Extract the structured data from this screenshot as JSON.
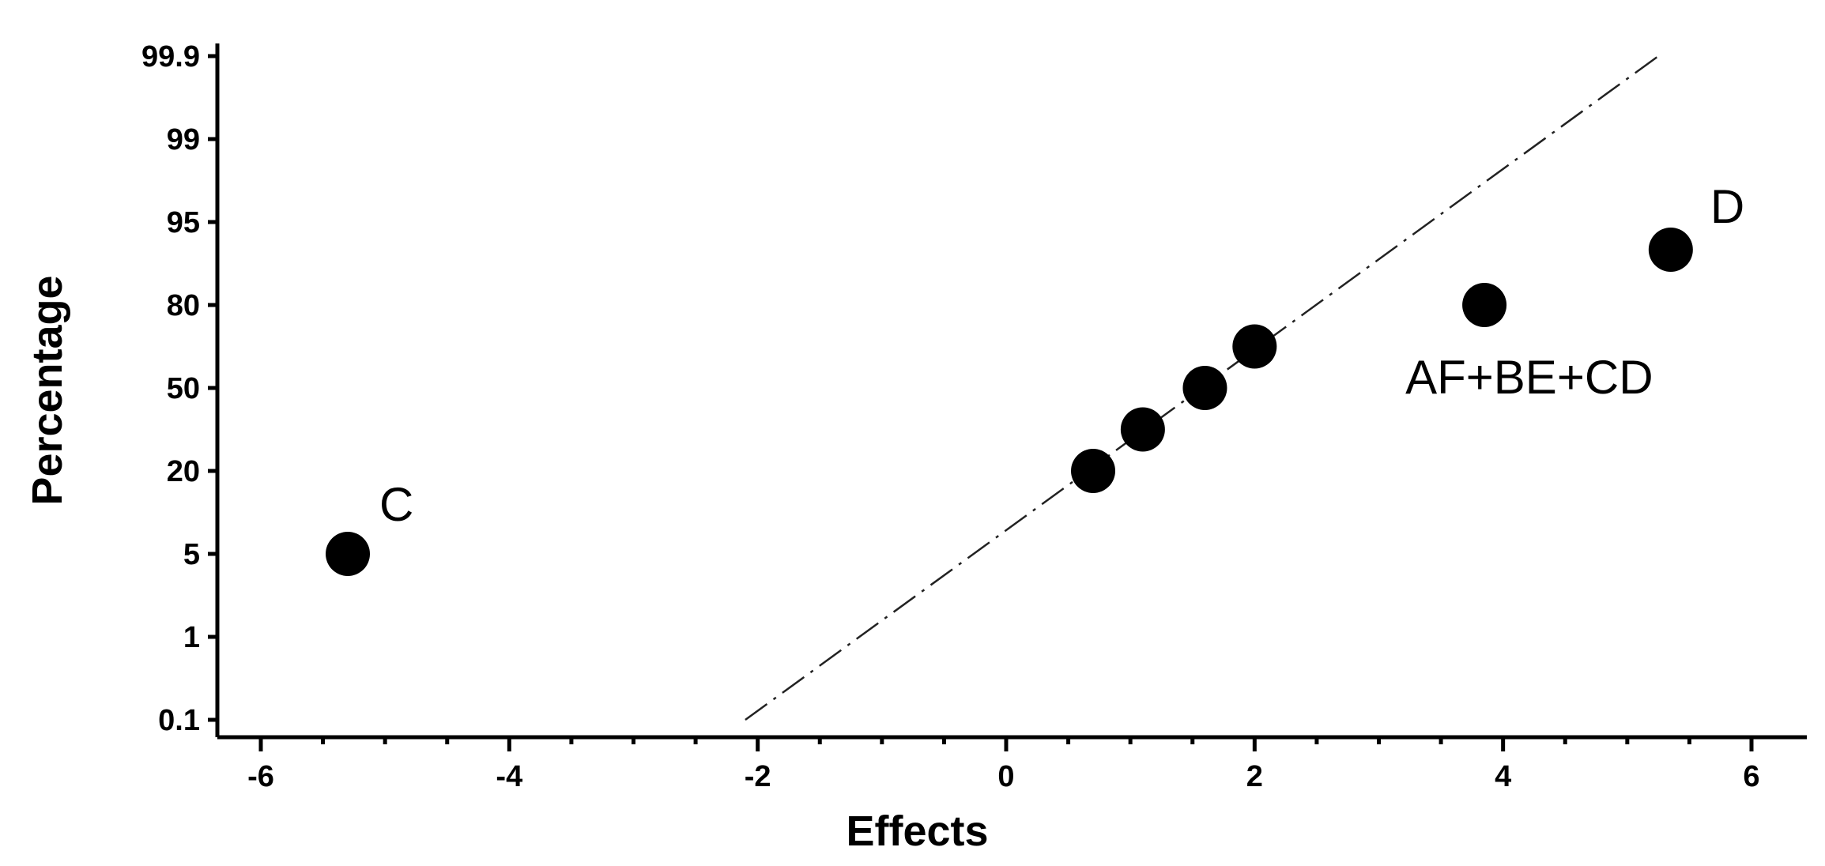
{
  "chart_data": {
    "type": "scatter",
    "title": "",
    "xlabel": "Effects",
    "ylabel": "Percentage",
    "xlim": [
      -6.2,
      6.5
    ],
    "x_ticks": [
      -6,
      -4,
      -2,
      0,
      2,
      4,
      6
    ],
    "x_minor_step": 0.5,
    "y_ticks": [
      "0.1",
      "1",
      "5",
      "20",
      "50",
      "80",
      "95",
      "99",
      "99.9"
    ],
    "y_scale": "normal-probability",
    "grid": false,
    "marker_color": "#000000",
    "points": [
      {
        "x": -5.3,
        "y": "5",
        "label": "C"
      },
      {
        "x": 0.7,
        "y": "20",
        "label": ""
      },
      {
        "x": 1.1,
        "y": "35",
        "label": ""
      },
      {
        "x": 1.6,
        "y": "50",
        "label": ""
      },
      {
        "x": 2.0,
        "y": "65",
        "label": ""
      },
      {
        "x": 3.85,
        "y": "80",
        "label": "AF+BE+CD"
      },
      {
        "x": 5.35,
        "y": "90",
        "label": "D"
      }
    ],
    "fit_line": {
      "style": "dash-dot",
      "from": {
        "x": -2.1,
        "y": "0.1"
      },
      "to": {
        "x": 5.25,
        "y": "99.9"
      }
    }
  }
}
